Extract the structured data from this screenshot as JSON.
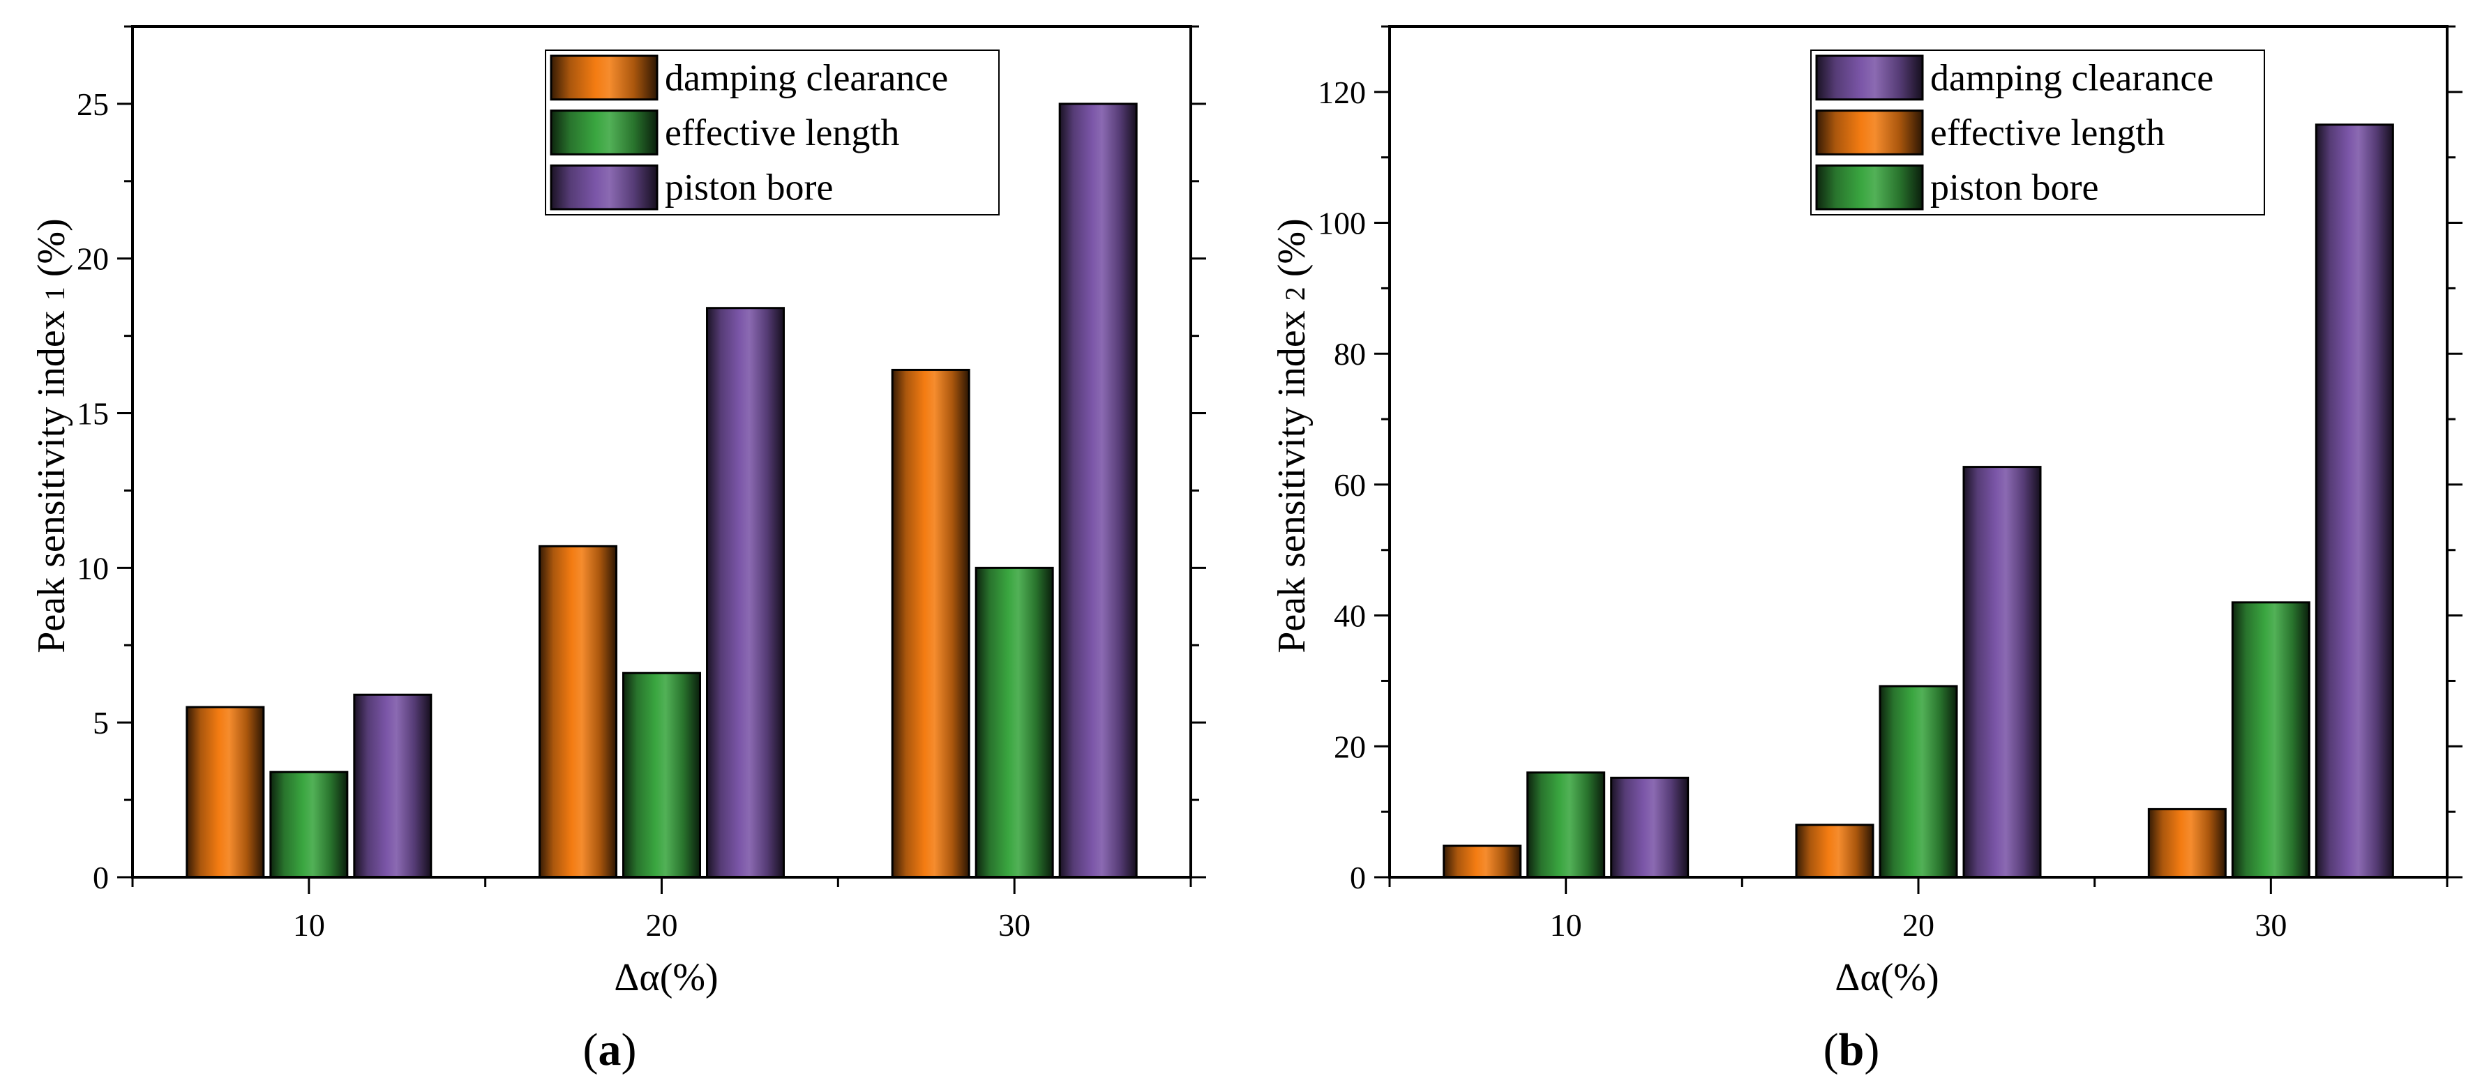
{
  "colors": {
    "orange": "#f47c12",
    "green": "#3aa640",
    "purple": "#7b56a8",
    "axis": "#000000"
  },
  "chart_data": [
    {
      "type": "bar",
      "panel_label": "(a)",
      "panel_open": "(",
      "panel_letter": "a",
      "panel_close": ")",
      "title": "",
      "categories": [
        "10",
        "20",
        "30"
      ],
      "xlabel": "Δα(%)",
      "ylabel": "Peak sensitivity index 1 (%)",
      "ylabel_main": "Peak sensitivity index ",
      "ylabel_sub": "1",
      "ylabel_unit": " (%)",
      "ylim": [
        0,
        27.5
      ],
      "yticks": [
        0,
        5,
        10,
        15,
        20,
        25
      ],
      "ytick_labels": [
        "0",
        "5",
        "10",
        "15",
        "20",
        "25"
      ],
      "legend_position": "top-right",
      "series": [
        {
          "name": "damping clearance",
          "color": "#f47c12",
          "values": [
            5.5,
            10.7,
            16.4
          ]
        },
        {
          "name": "effective length",
          "color": "#3aa640",
          "values": [
            3.4,
            6.6,
            10.0
          ]
        },
        {
          "name": "piston bore",
          "color": "#7b56a8",
          "values": [
            5.9,
            18.4,
            25.0
          ]
        }
      ]
    },
    {
      "type": "bar",
      "panel_label": "(b)",
      "panel_open": "(",
      "panel_letter": "b",
      "panel_close": ")",
      "title": "",
      "categories": [
        "10",
        "20",
        "30"
      ],
      "xlabel": "Δα(%)",
      "ylabel": "Peak sensitivity index 2 (%)",
      "ylabel_main": "Peak sensitivity index ",
      "ylabel_sub": "2",
      "ylabel_unit": " (%)",
      "ylim": [
        0,
        130
      ],
      "yticks": [
        0,
        20,
        40,
        60,
        80,
        100,
        120
      ],
      "ytick_labels": [
        "0",
        "20",
        "40",
        "60",
        "80",
        "100",
        "120"
      ],
      "legend_position": "top-right",
      "series": [
        {
          "name": "damping clearance",
          "color": "#7b56a8",
          "values": [
            15.2,
            62.7,
            115.0
          ]
        },
        {
          "name": "effective length",
          "color": "#f47c12",
          "values": [
            4.8,
            8.0,
            10.4
          ]
        },
        {
          "name": "piston bore",
          "color": "#3aa640",
          "values": [
            16.0,
            29.2,
            42.0
          ]
        }
      ],
      "bar_draw_order": [
        "effective length",
        "piston bore",
        "damping clearance"
      ]
    }
  ]
}
